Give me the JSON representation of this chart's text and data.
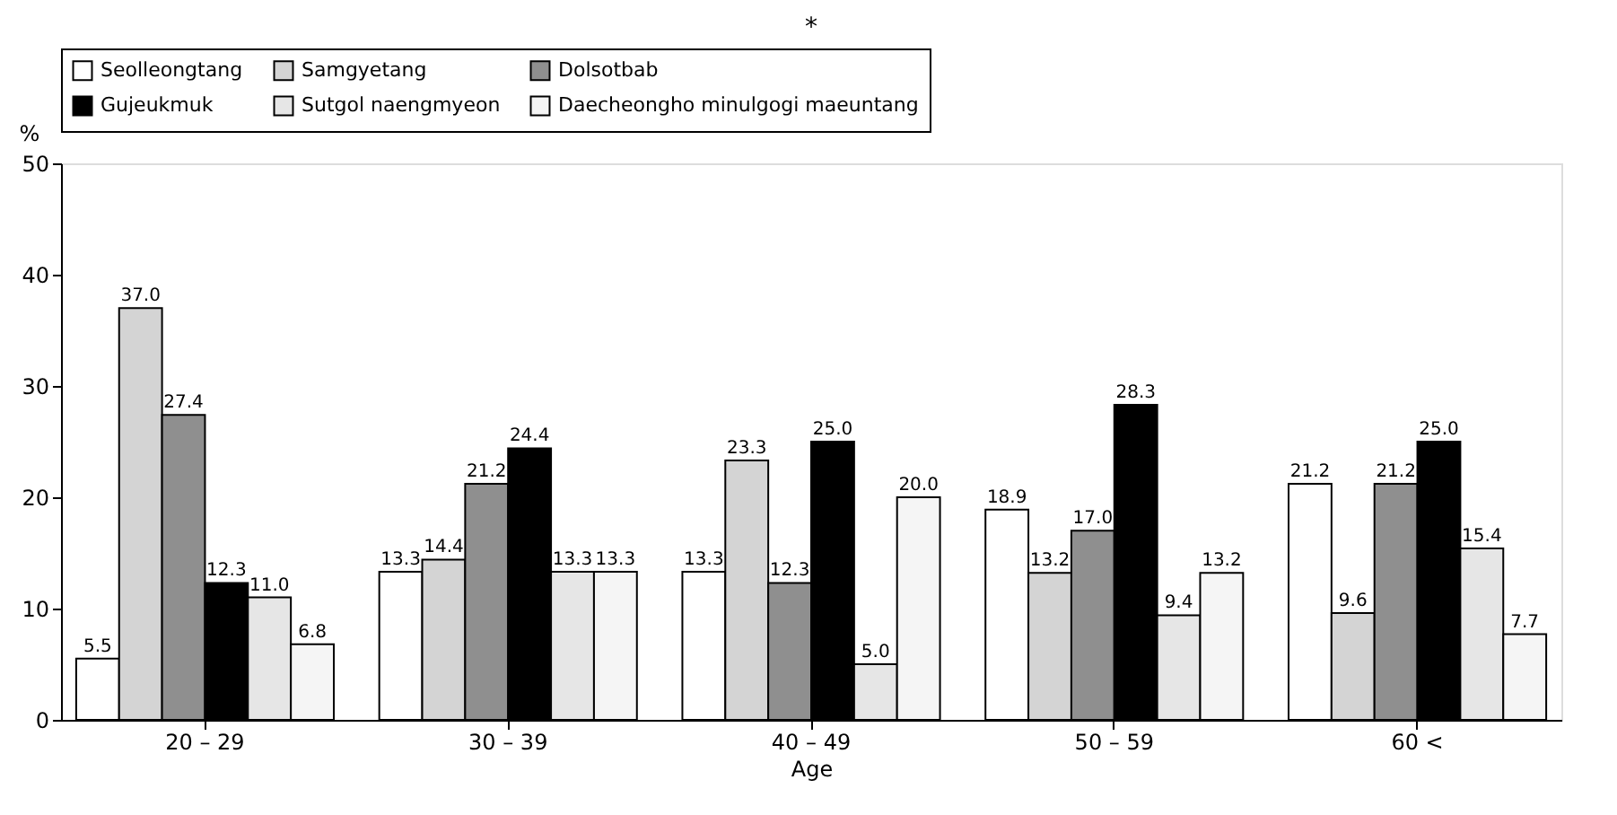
{
  "chart_data": {
    "type": "bar",
    "xlabel": "Age",
    "ylabel": "%",
    "categories": [
      "20 – 29",
      "30 – 39",
      "40 – 49",
      "50 – 59",
      "60 <"
    ],
    "series": [
      {
        "name": "Seolleongtang",
        "color": "#ffffff",
        "values": [
          5.5,
          13.3,
          13.3,
          18.9,
          21.2
        ],
        "value_labels": [
          "5.5",
          "13.3",
          "13.3",
          "18.9",
          "21.2"
        ]
      },
      {
        "name": "Samgyetang",
        "color": "#d4d4d4",
        "values": [
          37.0,
          14.4,
          23.3,
          13.2,
          9.6
        ],
        "value_labels": [
          "37.0",
          "14.4",
          "23.3",
          "13.2",
          "9.6"
        ]
      },
      {
        "name": "Dolsotbab",
        "color": "#8f8f8f",
        "values": [
          27.4,
          21.2,
          12.3,
          17.0,
          21.2
        ],
        "value_labels": [
          "27.4",
          "21.2",
          "12.3",
          "17.0",
          "21.2"
        ]
      },
      {
        "name": "Gujeukmuk",
        "color": "#000000",
        "values": [
          12.3,
          24.4,
          25.0,
          28.3,
          25.0
        ],
        "value_labels": [
          "12.3",
          "24.4",
          "25.0",
          "28.3",
          "25.0"
        ]
      },
      {
        "name": "Sutgol naengmyeon",
        "color": "#e6e6e6",
        "values": [
          11.0,
          13.3,
          5.0,
          9.4,
          15.4
        ],
        "value_labels": [
          "11.0",
          "13.3",
          "5.0",
          "9.4",
          "15.4"
        ]
      },
      {
        "name": "Daecheongho minulgogi maeuntang",
        "color": "#f5f5f5",
        "values": [
          6.8,
          13.3,
          20.0,
          13.2,
          7.7
        ],
        "value_labels": [
          "6.8",
          "13.3",
          "20.0",
          "13.2",
          "7.7"
        ]
      }
    ],
    "ylim": [
      0,
      50
    ],
    "yticks": [
      0,
      10,
      20,
      30,
      40,
      50
    ],
    "grid": false,
    "legend": "top",
    "annotations": [
      "*"
    ]
  }
}
